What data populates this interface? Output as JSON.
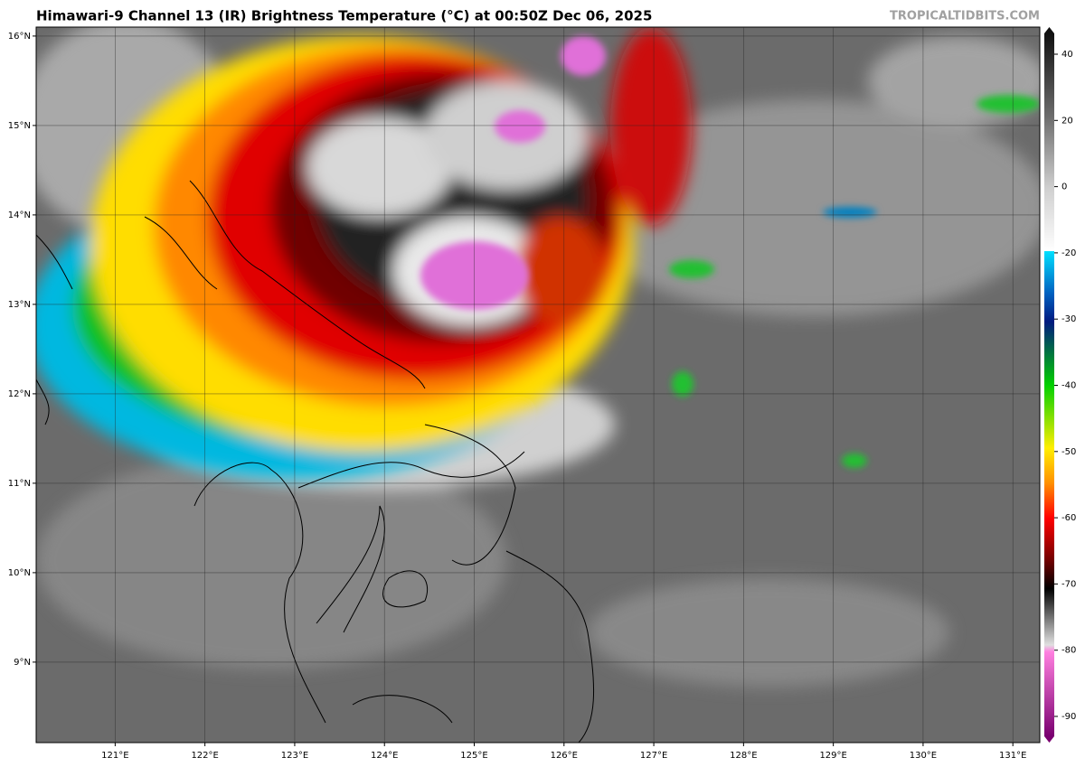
{
  "map": {
    "title": "Himawari-9 Channel 13 (IR) Brightness Temperature (°C) at 00:50Z Dec 06, 2025",
    "credit": "TROPICALTIDBITS.COM",
    "lonlim": [
      120.12,
      131.3
    ],
    "latlim": [
      8.1,
      16.1
    ],
    "lon_ticks": [
      {
        "value": 121,
        "label": "121°E"
      },
      {
        "value": 122,
        "label": "122°E"
      },
      {
        "value": 123,
        "label": "123°E"
      },
      {
        "value": 124,
        "label": "124°E"
      },
      {
        "value": 125,
        "label": "125°E"
      },
      {
        "value": 126,
        "label": "126°E"
      },
      {
        "value": 127,
        "label": "127°E"
      },
      {
        "value": 128,
        "label": "128°E"
      },
      {
        "value": 129,
        "label": "129°E"
      },
      {
        "value": 130,
        "label": "130°E"
      },
      {
        "value": 131,
        "label": "131°E"
      }
    ],
    "lat_ticks": [
      {
        "value": 16,
        "label": "16°N"
      },
      {
        "value": 15,
        "label": "15°N"
      },
      {
        "value": 14,
        "label": "14°N"
      },
      {
        "value": 13,
        "label": "13°N"
      },
      {
        "value": 12,
        "label": "12°N"
      },
      {
        "value": 11,
        "label": "11°N"
      },
      {
        "value": 10,
        "label": "10°N"
      },
      {
        "value": 9,
        "label": "9°N"
      }
    ],
    "colorbar_ticks": [
      40,
      20,
      0,
      -20,
      -30,
      -40,
      -50,
      -60,
      -70,
      -80,
      -90
    ]
  }
}
